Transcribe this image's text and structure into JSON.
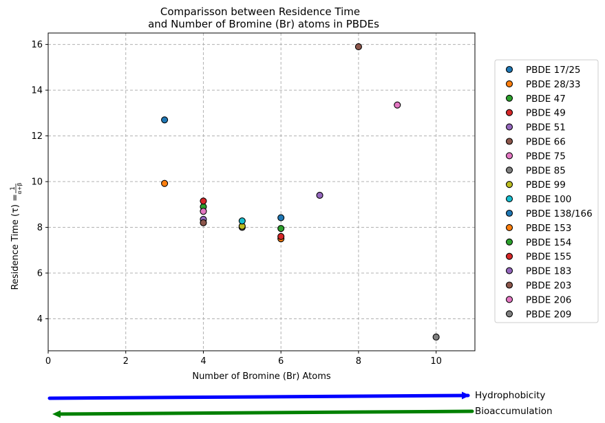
{
  "chart_data": {
    "type": "scatter",
    "title_line1": "Comparisson between Residence Time",
    "title_line2": "and Number of Bromine (Br) atoms in PBDEs",
    "xlabel": "Number of Bromine (Br) Atoms",
    "ylabel_prefix": "Residence Time (τ) = ",
    "ylabel_fraction_num": "1",
    "ylabel_fraction_den": "α+β",
    "xlim": [
      0,
      11
    ],
    "ylim": [
      2.6,
      16.5
    ],
    "x_ticks": [
      0,
      2,
      4,
      6,
      8,
      10
    ],
    "y_ticks": [
      4,
      6,
      8,
      10,
      12,
      14,
      16
    ],
    "grid": true,
    "legend_position": "right",
    "series": [
      {
        "name": "PBDE 17/25",
        "color": "#1f77b4",
        "x": 3,
        "y": 12.7
      },
      {
        "name": "PBDE 28/33",
        "color": "#ff7f0e",
        "x": 3,
        "y": 9.92
      },
      {
        "name": "PBDE 47",
        "color": "#2ca02c",
        "x": 4,
        "y": 8.9
      },
      {
        "name": "PBDE 49",
        "color": "#d62728",
        "x": 4,
        "y": 9.15
      },
      {
        "name": "PBDE 51",
        "color": "#9467bd",
        "x": 4,
        "y": 8.35
      },
      {
        "name": "PBDE 66",
        "color": "#8c564b",
        "x": 4,
        "y": 8.2
      },
      {
        "name": "PBDE 75",
        "color": "#e377c2",
        "x": 4,
        "y": 8.7
      },
      {
        "name": "PBDE 85",
        "color": "#7f7f7f",
        "x": 5,
        "y": 8.0
      },
      {
        "name": "PBDE 99",
        "color": "#bcbd22",
        "x": 5,
        "y": 8.05
      },
      {
        "name": "PBDE 100",
        "color": "#17becf",
        "x": 5,
        "y": 8.28
      },
      {
        "name": "PBDE 138/166",
        "color": "#1f77b4",
        "x": 6,
        "y": 8.42
      },
      {
        "name": "PBDE 153",
        "color": "#ff7f0e",
        "x": 6,
        "y": 7.5
      },
      {
        "name": "PBDE 154",
        "color": "#2ca02c",
        "x": 6,
        "y": 7.95
      },
      {
        "name": "PBDE 155",
        "color": "#d62728",
        "x": 6,
        "y": 7.6
      },
      {
        "name": "PBDE 183",
        "color": "#9467bd",
        "x": 7,
        "y": 9.4
      },
      {
        "name": "PBDE 203",
        "color": "#8c564b",
        "x": 8,
        "y": 15.9
      },
      {
        "name": "PBDE 206",
        "color": "#e377c2",
        "x": 9,
        "y": 13.35
      },
      {
        "name": "PBDE 209",
        "color": "#7f7f7f",
        "x": 10,
        "y": 3.2
      }
    ],
    "arrows": [
      {
        "label": "Hydrophobicity",
        "color": "#0000ff",
        "direction": "right"
      },
      {
        "label": "Bioaccumulation",
        "color": "#008000",
        "direction": "left"
      }
    ]
  }
}
